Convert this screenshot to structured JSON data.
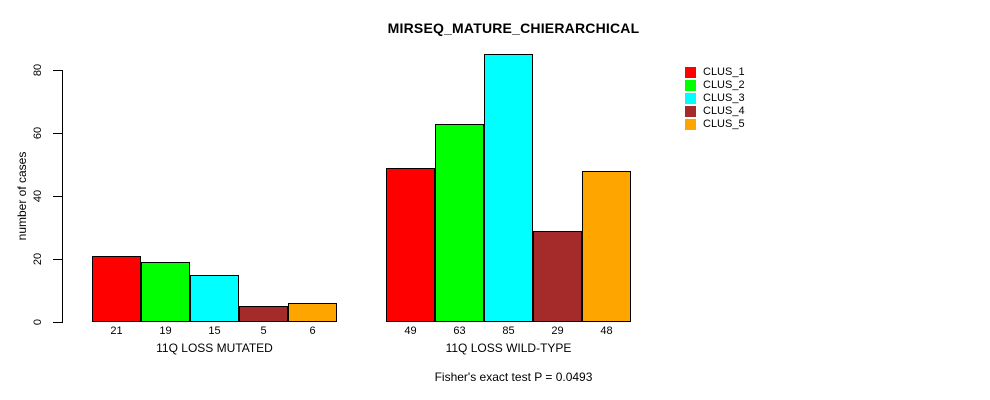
{
  "chart_data": {
    "type": "bar",
    "title": "MIRSEQ_MATURE_CHIERARCHICAL",
    "ylabel": "number of cases",
    "xlabel": "",
    "ylim": [
      0,
      85
    ],
    "yticks": [
      0,
      20,
      40,
      60,
      80
    ],
    "grid": false,
    "legend_position": "right",
    "bar_value_labels": true,
    "categories": [
      "11Q LOSS MUTATED",
      "11Q LOSS WILD-TYPE"
    ],
    "series": [
      {
        "name": "CLUS_1",
        "color": "#FF0000",
        "values": [
          21,
          49
        ]
      },
      {
        "name": "CLUS_2",
        "color": "#00FF00",
        "values": [
          19,
          63
        ]
      },
      {
        "name": "CLUS_3",
        "color": "#00FFFF",
        "values": [
          15,
          85
        ]
      },
      {
        "name": "CLUS_4",
        "color": "#A52A2A",
        "values": [
          5,
          29
        ]
      },
      {
        "name": "CLUS_5",
        "color": "#FFA500",
        "values": [
          6,
          48
        ]
      }
    ],
    "annotation": "Fisher's exact test P = 0.0493"
  }
}
